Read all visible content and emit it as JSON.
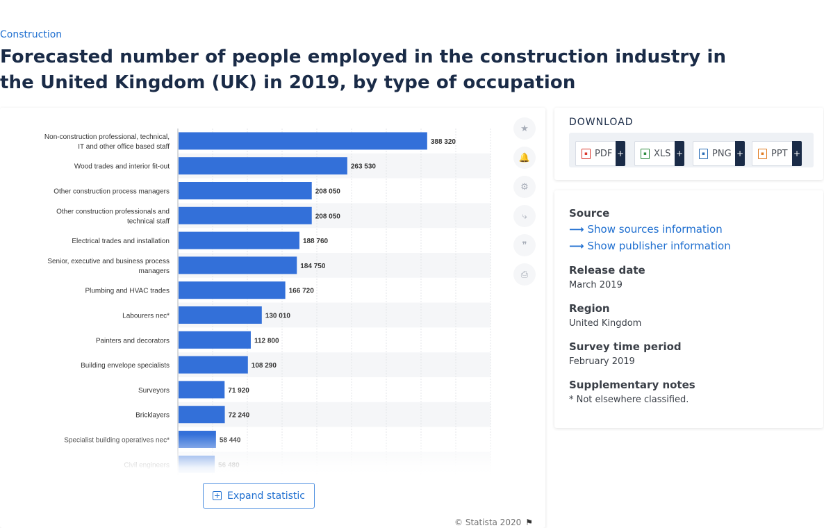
{
  "breadcrumb": "Construction",
  "title": "Forecasted number of people employed in the construction industry in the United Kingdom (UK) in 2019, by type of occupation",
  "toolbar": [
    {
      "icon": "star-icon",
      "glyph": "★"
    },
    {
      "icon": "bell-icon",
      "glyph": "🔔"
    },
    {
      "icon": "gear-icon",
      "glyph": "⚙"
    },
    {
      "icon": "share-icon",
      "glyph": "⤷"
    },
    {
      "icon": "quote-icon",
      "glyph": "❞"
    },
    {
      "icon": "print-icon",
      "glyph": "⎙"
    }
  ],
  "expand_label": "Expand statistic",
  "copyright": "© Statista 2020",
  "download": {
    "title": "DOWNLOAD",
    "buttons": [
      {
        "label": "PDF",
        "plus": "+",
        "color": "#d9362b"
      },
      {
        "label": "XLS",
        "plus": "+",
        "color": "#2e8b3e"
      },
      {
        "label": "PNG",
        "plus": "+",
        "color": "#2a6db5"
      },
      {
        "label": "PPT",
        "plus": "+",
        "color": "#e07a1f"
      }
    ]
  },
  "info": {
    "source_heading": "Source",
    "show_sources": "Show sources information",
    "show_publisher": "Show publisher information",
    "release_heading": "Release date",
    "release_value": "March 2019",
    "region_heading": "Region",
    "region_value": "United Kingdom",
    "survey_heading": "Survey time period",
    "survey_value": "February 2019",
    "notes_heading": "Supplementary notes",
    "notes_value": "* Not elsewhere classified."
  },
  "chart_data": {
    "type": "bar",
    "orientation": "horizontal",
    "title": "",
    "xlabel": "",
    "ylabel": "",
    "xlim": [
      0,
      488320
    ],
    "grid": true,
    "bar_color": "#3370d9",
    "categories": [
      "Non-construction professional, technical, IT and other office based staff",
      "Wood trades and interior fit-out",
      "Other construction process managers",
      "Other construction professionals and technical staff",
      "Electrical trades and installation",
      "Senior, executive and business process managers",
      "Plumbing and HVAC trades",
      "Labourers nec*",
      "Painters and decorators",
      "Building envelope specialists",
      "Surveyors",
      "Bricklayers",
      "Specialist building operatives nec*",
      "Civil engineers"
    ],
    "values": [
      388320,
      263530,
      208050,
      208050,
      188760,
      184750,
      166720,
      130010,
      112800,
      108290,
      71920,
      72240,
      58440,
      56480
    ],
    "value_labels": [
      "388 320",
      "263 530",
      "208 050",
      "208 050",
      "188 760",
      "184 750",
      "166 720",
      "130 010",
      "112 800",
      "108 290",
      "71 920",
      "72 240",
      "58 440",
      "56 480"
    ]
  }
}
